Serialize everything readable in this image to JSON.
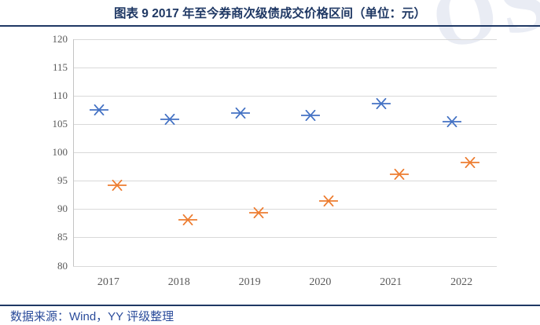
{
  "title": "图表 9 2017 年至今券商次级债成交价格区间（单位：元）",
  "watermark_text": "OS",
  "footer": {
    "source_label": "数据来源：Wind，YY 评级整理"
  },
  "colors": {
    "title_text": "#1F3864",
    "rule": "#1F3864",
    "footer_text": "#2B4C9B",
    "axis_text": "#595959",
    "gridline": "#D9D9D9",
    "series_blue": "#4472C4",
    "series_orange": "#ED7D31"
  },
  "chart_data": {
    "type": "scatter",
    "title": "图表 9 2017 年至今券商次级债成交价格区间（单位：元）",
    "xlabel": "",
    "ylabel": "",
    "categories": [
      "2017",
      "2018",
      "2019",
      "2020",
      "2021",
      "2022"
    ],
    "series": [
      {
        "name": "series-blue-upper",
        "color": "#4472C4",
        "marker": "asterisk-x",
        "values": [
          107.5,
          105.8,
          106.9,
          106.6,
          108.7,
          105.4
        ]
      },
      {
        "name": "series-orange-lower",
        "color": "#ED7D31",
        "marker": "asterisk-x",
        "values": [
          94.2,
          88.1,
          89.4,
          91.5,
          96.1,
          98.3
        ]
      }
    ],
    "ylim": [
      80,
      120
    ],
    "yticks": [
      120,
      115,
      110,
      105,
      100,
      95,
      90,
      85,
      80
    ],
    "grid": true,
    "legend_position": "none"
  }
}
